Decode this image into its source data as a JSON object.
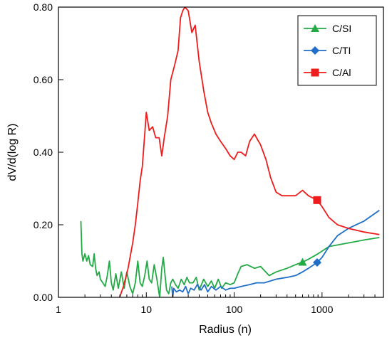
{
  "chart_data": {
    "type": "line",
    "xscale": "log",
    "xlim": [
      1,
      5000
    ],
    "ylim": [
      0,
      0.8
    ],
    "grid": false,
    "xlabel": "Radius (n)",
    "ylabel": "dV/d(log R)",
    "x_ticks": [
      {
        "value": 1,
        "label": "1"
      },
      {
        "value": 10,
        "label": "10"
      },
      {
        "value": 100,
        "label": "100"
      },
      {
        "value": 1000,
        "label": "1000"
      }
    ],
    "y_ticks": [
      {
        "value": 0,
        "label": "0.00"
      },
      {
        "value": 0.2,
        "label": "0.20"
      },
      {
        "value": 0.4,
        "label": "0.40"
      },
      {
        "value": 0.6,
        "label": "0.60"
      },
      {
        "value": 0.8,
        "label": "0.80"
      }
    ],
    "legend_position": "top-right",
    "series": [
      {
        "name": "C/SI",
        "color": "#22aa44",
        "marker": "triangle",
        "marker_at": [
          600,
          0.097
        ],
        "points": [
          [
            1.8,
            0.21
          ],
          [
            1.85,
            0.12
          ],
          [
            1.9,
            0.1
          ],
          [
            2.0,
            0.12
          ],
          [
            2.1,
            0.1
          ],
          [
            2.2,
            0.115
          ],
          [
            2.3,
            0.09
          ],
          [
            2.45,
            0.085
          ],
          [
            2.55,
            0.12
          ],
          [
            2.65,
            0.08
          ],
          [
            2.75,
            0.06
          ],
          [
            2.9,
            0.07
          ],
          [
            3.0,
            0.05
          ],
          [
            3.2,
            0.04
          ],
          [
            3.4,
            0.03
          ],
          [
            3.6,
            0.06
          ],
          [
            3.8,
            0.1
          ],
          [
            4.0,
            0.04
          ],
          [
            4.2,
            0.02
          ],
          [
            4.5,
            0.065
          ],
          [
            4.8,
            0.025
          ],
          [
            5.2,
            0.07
          ],
          [
            5.6,
            0.025
          ],
          [
            6.0,
            0.07
          ],
          [
            6.5,
            0.03
          ],
          [
            7.0,
            0.01
          ],
          [
            7.5,
            0.04
          ],
          [
            8.0,
            0.1
          ],
          [
            8.5,
            0.04
          ],
          [
            9.0,
            0.03
          ],
          [
            9.6,
            0.06
          ],
          [
            10.2,
            0.1
          ],
          [
            10.8,
            0.05
          ],
          [
            11.5,
            0.04
          ],
          [
            12.3,
            0.09
          ],
          [
            13.2,
            0.05
          ],
          [
            14.2,
            0.0
          ],
          [
            15.0,
            0.08
          ],
          [
            15.6,
            0.11
          ],
          [
            16.2,
            0.07
          ],
          [
            17.0,
            0.02
          ],
          [
            18.0,
            0.01
          ],
          [
            19.0,
            0.04
          ],
          [
            20.0,
            0.05
          ],
          [
            21.5,
            0.035
          ],
          [
            23.0,
            0.025
          ],
          [
            25.0,
            0.05
          ],
          [
            27.0,
            0.035
          ],
          [
            29.0,
            0.055
          ],
          [
            31.0,
            0.04
          ],
          [
            34.0,
            0.04
          ],
          [
            37.0,
            0.055
          ],
          [
            40.0,
            0.02
          ],
          [
            45.0,
            0.05
          ],
          [
            50.0,
            0.03
          ],
          [
            55.0,
            0.045
          ],
          [
            60.0,
            0.025
          ],
          [
            66.0,
            0.05
          ],
          [
            72.0,
            0.025
          ],
          [
            80.0,
            0.04
          ],
          [
            90.0,
            0.035
          ],
          [
            100.0,
            0.04
          ],
          [
            110.0,
            0.065
          ],
          [
            120.0,
            0.085
          ],
          [
            140.0,
            0.09
          ],
          [
            170.0,
            0.08
          ],
          [
            200.0,
            0.085
          ],
          [
            250.0,
            0.06
          ],
          [
            300.0,
            0.07
          ],
          [
            400.0,
            0.08
          ],
          [
            500.0,
            0.09
          ],
          [
            600.0,
            0.097
          ],
          [
            700.0,
            0.105
          ],
          [
            900.0,
            0.12
          ],
          [
            1200.0,
            0.14
          ],
          [
            2000.0,
            0.15
          ],
          [
            3000.0,
            0.158
          ],
          [
            4500.0,
            0.165
          ]
        ]
      },
      {
        "name": "C/TI",
        "color": "#1f6fc8",
        "marker": "diamond",
        "marker_at": [
          880,
          0.096
        ],
        "points": [
          [
            19.5,
            0.03
          ],
          [
            20.0,
            0.0
          ],
          [
            20.5,
            0.025
          ],
          [
            22.0,
            0.015
          ],
          [
            24.0,
            0.02
          ],
          [
            26.0,
            0.015
          ],
          [
            28.0,
            0.03
          ],
          [
            30.0,
            0.01
          ],
          [
            32.0,
            0.025
          ],
          [
            35.0,
            0.02
          ],
          [
            38.0,
            0.035
          ],
          [
            42.0,
            0.02
          ],
          [
            46.0,
            0.035
          ],
          [
            50.0,
            0.015
          ],
          [
            55.0,
            0.03
          ],
          [
            62.0,
            0.02
          ],
          [
            70.0,
            0.03
          ],
          [
            80.0,
            0.02
          ],
          [
            90.0,
            0.025
          ],
          [
            100.0,
            0.025
          ],
          [
            120.0,
            0.03
          ],
          [
            150.0,
            0.035
          ],
          [
            180.0,
            0.04
          ],
          [
            220.0,
            0.04
          ],
          [
            300.0,
            0.05
          ],
          [
            400.0,
            0.055
          ],
          [
            500.0,
            0.06
          ],
          [
            600.0,
            0.07
          ],
          [
            700.0,
            0.08
          ],
          [
            880.0,
            0.096
          ],
          [
            1000.0,
            0.11
          ],
          [
            1200.0,
            0.14
          ],
          [
            1500.0,
            0.17
          ],
          [
            2000.0,
            0.19
          ],
          [
            3000.0,
            0.21
          ],
          [
            4500.0,
            0.24
          ]
        ]
      },
      {
        "name": "C/Al",
        "color": "#ee1c1c",
        "marker": "square",
        "marker_at": [
          880,
          0.268
        ],
        "points": [
          [
            4.8,
            -0.01
          ],
          [
            5.5,
            0.03
          ],
          [
            6.2,
            0.08
          ],
          [
            7.0,
            0.15
          ],
          [
            7.5,
            0.2
          ],
          [
            8.0,
            0.26
          ],
          [
            8.5,
            0.32
          ],
          [
            9.0,
            0.36
          ],
          [
            9.6,
            0.45
          ],
          [
            10.0,
            0.51
          ],
          [
            10.8,
            0.46
          ],
          [
            11.8,
            0.47
          ],
          [
            12.8,
            0.44
          ],
          [
            14.0,
            0.44
          ],
          [
            15.0,
            0.39
          ],
          [
            16.0,
            0.44
          ],
          [
            17.5,
            0.5
          ],
          [
            19.0,
            0.6
          ],
          [
            21.0,
            0.64
          ],
          [
            23.0,
            0.68
          ],
          [
            24.5,
            0.77
          ],
          [
            26.0,
            0.79
          ],
          [
            27.5,
            0.8
          ],
          [
            30.0,
            0.79
          ],
          [
            33.0,
            0.73
          ],
          [
            36.0,
            0.75
          ],
          [
            40.0,
            0.65
          ],
          [
            45.0,
            0.57
          ],
          [
            50.0,
            0.51
          ],
          [
            55.0,
            0.48
          ],
          [
            62.0,
            0.45
          ],
          [
            70.0,
            0.43
          ],
          [
            80.0,
            0.41
          ],
          [
            90.0,
            0.39
          ],
          [
            100.0,
            0.38
          ],
          [
            110.0,
            0.4
          ],
          [
            120.0,
            0.4
          ],
          [
            135.0,
            0.39
          ],
          [
            150.0,
            0.43
          ],
          [
            170.0,
            0.45
          ],
          [
            200.0,
            0.42
          ],
          [
            230.0,
            0.38
          ],
          [
            260.0,
            0.33
          ],
          [
            300.0,
            0.29
          ],
          [
            350.0,
            0.28
          ],
          [
            400.0,
            0.28
          ],
          [
            500.0,
            0.28
          ],
          [
            600.0,
            0.295
          ],
          [
            700.0,
            0.28
          ],
          [
            880.0,
            0.268
          ],
          [
            1000.0,
            0.25
          ],
          [
            1200.0,
            0.22
          ],
          [
            1500.0,
            0.2
          ],
          [
            2000.0,
            0.19
          ],
          [
            3000.0,
            0.18
          ],
          [
            4500.0,
            0.173
          ]
        ]
      }
    ]
  }
}
